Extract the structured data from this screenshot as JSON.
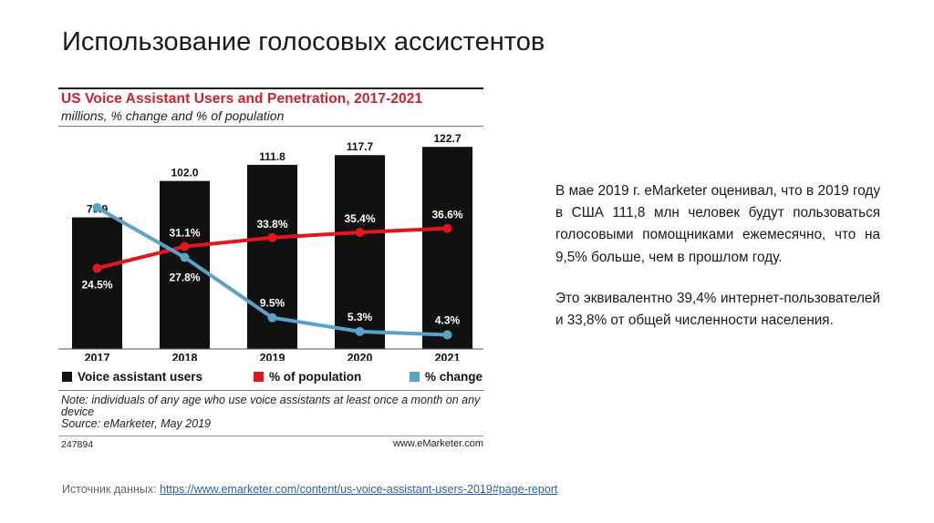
{
  "slide": {
    "title": "Использование голосовых ассистентов",
    "paragraph1": "В мае 2019 г. eMarketer оценивал, что в 2019 году в США 111,8 млн человек будут пользоваться голосовыми помощниками ежемесячно, что на 9,5% больше, чем в прошлом году.",
    "paragraph2": "Это эквивалентно 39,4% интернет-пользователей и 33,8% от общей численности населения.",
    "source_label": "Источник данных:",
    "source_url": "https://www.emarketer.com/content/us-voice-assistant-users-2019#page-report"
  },
  "chart_data": {
    "type": "bar",
    "title": "US Voice Assistant Users and Penetration, 2017-2021",
    "subtitle": "millions, % change and % of population",
    "categories": [
      "2017",
      "2018",
      "2019",
      "2020",
      "2021"
    ],
    "series": [
      {
        "name": "Voice assistant users",
        "type": "bar",
        "color": "#111111",
        "values": [
          79.9,
          102.0,
          111.8,
          117.7,
          122.7
        ],
        "labels": [
          "79.9",
          "102.0",
          "111.8",
          "117.7",
          "122.7"
        ]
      },
      {
        "name": "% of population",
        "type": "line",
        "color": "#e3161c",
        "values": [
          24.5,
          31.1,
          33.8,
          35.4,
          36.6
        ],
        "labels": [
          "24.5%",
          "31.1%",
          "33.8%",
          "35.4%",
          "36.6%"
        ]
      },
      {
        "name": "% change",
        "type": "line",
        "color": "#5aa3c8",
        "values": [
          42.9,
          27.8,
          9.5,
          5.3,
          4.3
        ],
        "labels": [
          "42.9%",
          "27.8%",
          "9.5%",
          "5.3%",
          "4.3%"
        ]
      }
    ],
    "ylim": [
      0,
      130
    ],
    "pct_ylim": [
      0,
      65
    ],
    "grid": false,
    "legend_position": "bottom",
    "note": "Note: individuals of any age who use voice assistants at least once a month on any device",
    "source": "Source: eMarketer, May 2019",
    "chart_id": "247894",
    "brand": "www.eMarketer.com"
  }
}
